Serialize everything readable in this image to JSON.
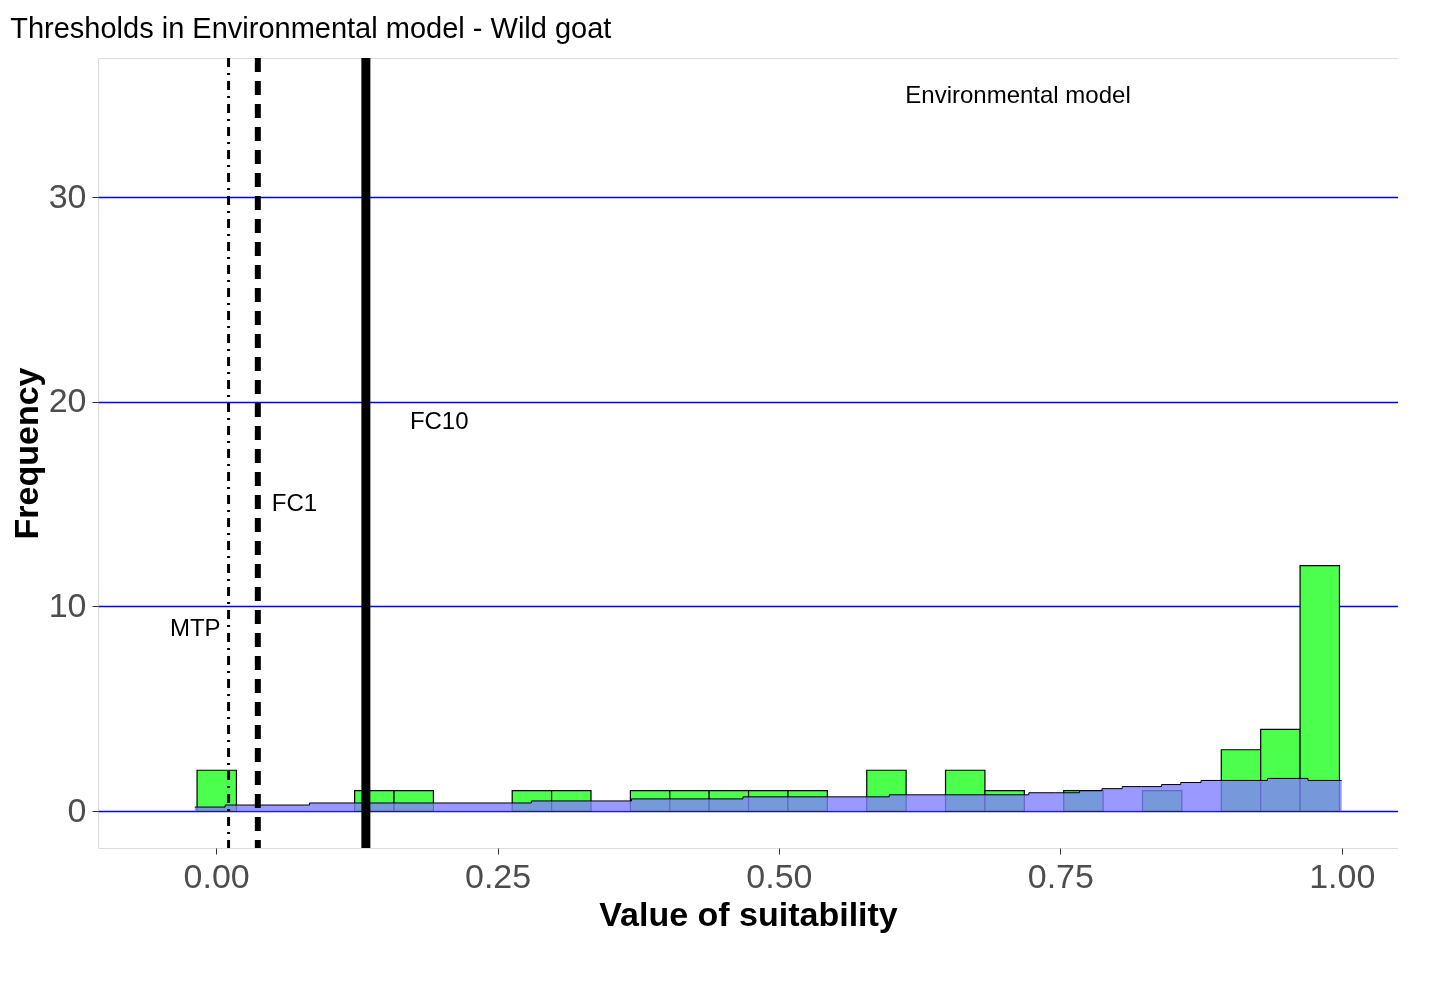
{
  "chart_data": {
    "type": "histogram",
    "title": "Thresholds in Environmental model - Wild goat",
    "xlabel": "Value of suitability",
    "ylabel": "Frequency",
    "color": "#4dff4d",
    "bins": [
      -0.017,
      0.018,
      0.053,
      0.088,
      0.123,
      0.158,
      0.193,
      0.228,
      0.263,
      0.298,
      0.333,
      0.368,
      0.403,
      0.438,
      0.473,
      0.508,
      0.543,
      0.578,
      0.613,
      0.648,
      0.683,
      0.718,
      0.753,
      0.788,
      0.823,
      0.858,
      0.893,
      0.928,
      0.963,
      0.998
    ],
    "values": [
      2,
      0,
      0,
      0,
      1,
      1,
      0,
      0,
      1,
      1,
      0,
      1,
      1,
      1,
      1,
      1,
      0,
      2,
      0,
      2,
      1,
      0,
      1,
      0,
      1,
      0,
      3,
      4,
      12
    ],
    "series": [
      {
        "type": "area",
        "color": "#8080ff",
        "x": [
          -0.019,
          0.008,
          0.083,
          0.181,
          0.28,
          0.369,
          0.468,
          0.598,
          0.678,
          0.722,
          0.746,
          0.767,
          0.787,
          0.805,
          0.822,
          0.84,
          0.857,
          0.875,
          0.898,
          0.934,
          0.97,
          1.0
        ],
        "values": [
          0.2,
          0.3,
          0.4,
          0.4,
          0.5,
          0.6,
          0.7,
          0.8,
          0.8,
          0.9,
          0.9,
          1.0,
          1.1,
          1.2,
          1.2,
          1.3,
          1.4,
          1.5,
          1.5,
          1.6,
          1.5,
          1.5
        ]
      }
    ],
    "ref_lines": [
      {
        "axis": "x",
        "value": 0.011,
        "label": "MTP",
        "line_style": "dashdot",
        "color": "#000000"
      },
      {
        "axis": "x",
        "value": 0.037,
        "label": "FC1",
        "line_style": "dashed",
        "color": "#000000"
      },
      {
        "axis": "x",
        "value": 0.133,
        "label": "FC10",
        "line_style": "solid",
        "color": "#000000"
      }
    ],
    "annotations": [
      "Environmental model"
    ],
    "xlim": [
      -0.105,
      1.05
    ],
    "ylim": [
      -1.8,
      36.8
    ],
    "xticks": [
      {
        "value": 0,
        "label": "0.00"
      },
      {
        "value": 0.25,
        "label": "0.25"
      },
      {
        "value": 0.5,
        "label": "0.50"
      },
      {
        "value": 0.75,
        "label": "0.75"
      },
      {
        "value": 1,
        "label": "1.00"
      }
    ],
    "yticks": [
      0,
      10,
      20,
      30
    ],
    "grid": "y"
  }
}
